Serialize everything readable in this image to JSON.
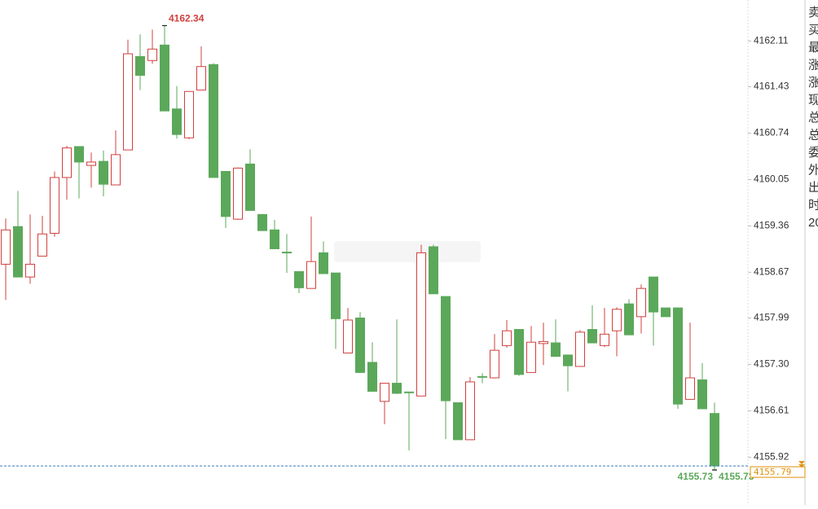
{
  "chart_data": {
    "type": "candlestick",
    "up_color": "#d0403f",
    "down_color": "#5ba85a",
    "last_price_color": "#e0900a",
    "ylim": [
      4155.21,
      4162.72
    ],
    "yticks": [
      4162.11,
      4161.43,
      4160.74,
      4160.05,
      4159.36,
      4158.67,
      4157.99,
      {
        "value": 4157.3,
        "label": "4157.30"
      },
      4156.61,
      4155.92
    ],
    "open": [
      4158.79,
      4159.35,
      4158.6,
      4158.91,
      4159.25,
      4160.08,
      4160.54,
      4160.26,
      4160.32,
      4159.97,
      4160.49,
      4161.88,
      4161.82,
      4162.05,
      4161.1,
      4160.67,
      4161.38,
      4161.76,
      4160.17,
      4159.46,
      4160.28,
      4159.53,
      4159.3,
      4158.97,
      4158.68,
      4158.43,
      4158.96,
      4158.66,
      4157.47,
      4157.99,
      4157.33,
      4156.75,
      4157.02,
      4156.89,
      4156.83,
      4159.05,
      4158.31,
      4156.73,
      4156.18,
      4157.12,
      4157.1,
      4157.58,
      4157.82,
      4157.18,
      4157.61,
      4157.62,
      4157.44,
      4157.27,
      4157.82,
      4157.58,
      4157.8,
      4158.2,
      4158.01,
      4158.6,
      4158.14,
      4158.14,
      4156.78,
      4157.07,
      4156.57
    ],
    "high": [
      4159.47,
      4159.88,
      4159.53,
      4159.51,
      4160.17,
      4160.55,
      4160.54,
      4160.45,
      4160.48,
      4160.78,
      4162.13,
      4162.21,
      4162.28,
      4162.34,
      4161.44,
      4161.36,
      4162.03,
      4161.78,
      4160.17,
      4160.23,
      4160.5,
      4159.53,
      4159.45,
      4159.24,
      4158.68,
      4159.5,
      4159.13,
      4158.66,
      4158.14,
      4158.08,
      4157.63,
      4157.02,
      4157.97,
      4156.89,
      4159.08,
      4159.08,
      4158.31,
      4156.73,
      4157.11,
      4157.17,
      4157.75,
      4157.96,
      4157.82,
      4157.87,
      4157.92,
      4157.97,
      4157.44,
      4157.81,
      4158.18,
      4158.14,
      4158.15,
      4158.27,
      4158.49,
      4158.6,
      4158.14,
      4158.14,
      4157.92,
      4157.32,
      4156.73
    ],
    "low": [
      4158.26,
      4158.6,
      4158.5,
      4158.91,
      4159.2,
      4159.75,
      4159.77,
      4159.93,
      4159.8,
      4159.97,
      4160.49,
      4161.38,
      4161.77,
      4161.07,
      4160.66,
      4160.65,
      4161.38,
      4160.08,
      4159.33,
      4159.45,
      4159.59,
      4159.29,
      4159.02,
      4158.66,
      4158.36,
      4158.43,
      4158.65,
      4157.53,
      4157.47,
      4157.18,
      4156.9,
      4156.41,
      4156.86,
      4156.02,
      4156.83,
      4158.35,
      4156.19,
      4156.18,
      4156.18,
      4157.02,
      4157.09,
      4157.55,
      4157.13,
      4157.18,
      4157.29,
      4157.42,
      4156.9,
      4157.27,
      4157.62,
      4157.56,
      4157.42,
      4157.74,
      4157.76,
      4157.58,
      4158.01,
      4156.64,
      4156.78,
      4156.64,
      4155.73
    ],
    "close": [
      4159.3,
      4158.6,
      4158.79,
      4159.24,
      4160.08,
      4160.52,
      4160.31,
      4160.31,
      4159.98,
      4160.42,
      4161.92,
      4161.6,
      4161.99,
      4161.07,
      4160.72,
      4161.36,
      4161.73,
      4160.08,
      4159.5,
      4160.22,
      4159.59,
      4159.29,
      4159.02,
      4158.96,
      4158.44,
      4158.83,
      4158.65,
      4157.98,
      4157.96,
      4157.18,
      4156.9,
      4157.02,
      4156.87,
      4156.88,
      4158.96,
      4158.35,
      4156.76,
      4156.18,
      4157.04,
      4157.11,
      4157.51,
      4157.8,
      4157.15,
      4157.63,
      4157.64,
      4157.42,
      4157.28,
      4157.78,
      4157.62,
      4157.75,
      4158.12,
      4157.74,
      4158.43,
      4158.08,
      4158.01,
      4156.71,
      4157.1,
      4156.64,
      4155.79
    ],
    "side_panel": [
      "卖",
      "买",
      "最",
      "涨",
      "涨",
      "现",
      "总",
      "总",
      "委",
      "外",
      "出",
      "时",
      "20"
    ]
  }
}
